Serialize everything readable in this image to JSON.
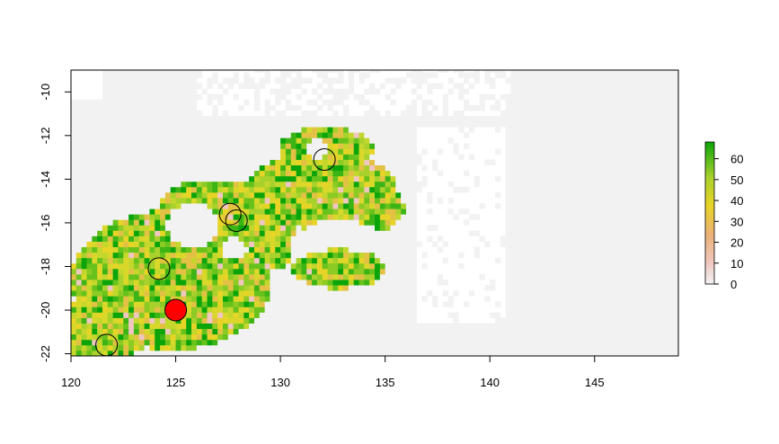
{
  "chart_data": {
    "type": "heatmap",
    "title": "",
    "xlabel": "",
    "ylabel": "",
    "xlim": [
      120,
      149
    ],
    "ylim": [
      -22.1,
      -9.0
    ],
    "x_ticks": [
      120,
      125,
      130,
      135,
      140,
      145
    ],
    "y_ticks": [
      -10,
      -12,
      -14,
      -16,
      -18,
      -20,
      -22
    ],
    "legend": {
      "placement": "right",
      "range": [
        0,
        68
      ],
      "ticks": [
        0,
        10,
        20,
        30,
        40,
        50,
        60
      ]
    },
    "colors": {
      "background_cells": "#f2f2f2",
      "low": "#f2f2f2",
      "mid_low": "#ecb176",
      "mid": "#e8d427",
      "high": "#a9d12c",
      "max": "#0ba50b"
    },
    "points": [
      {
        "x": 121.7,
        "y": -21.6,
        "filled": false
      },
      {
        "x": 124.2,
        "y": -18.1,
        "filled": false
      },
      {
        "x": 127.6,
        "y": -15.6,
        "filled": false
      },
      {
        "x": 127.9,
        "y": -15.9,
        "filled": false
      },
      {
        "x": 132.1,
        "y": -13.1,
        "filled": false
      },
      {
        "x": 125.0,
        "y": -20.0,
        "filled": true,
        "color": "#ff0000"
      }
    ]
  }
}
